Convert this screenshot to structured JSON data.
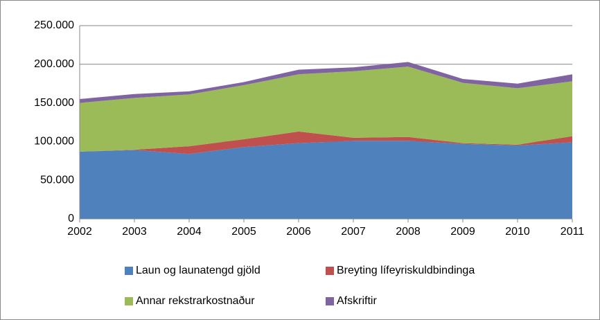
{
  "chart_data": {
    "type": "stacked-area",
    "x": [
      2002,
      2003,
      2004,
      2005,
      2006,
      2007,
      2008,
      2009,
      2010,
      2011
    ],
    "xlim": [
      2002,
      2011
    ],
    "series": [
      {
        "name": "Laun og launatengd gjöld",
        "color": "#4f81bd",
        "values": [
          87000,
          89000,
          84000,
          93000,
          98000,
          101000,
          101000,
          97000,
          95000,
          99000
        ]
      },
      {
        "name": "Breyting lífeyriskuldbindinga",
        "color": "#c0504d",
        "values": [
          0,
          500,
          10000,
          10000,
          15000,
          4000,
          5000,
          1000,
          1000,
          8000
        ]
      },
      {
        "name": "Annar rekstrarkostnaður",
        "color": "#9bbb59",
        "values": [
          63000,
          67000,
          67000,
          70000,
          74000,
          86000,
          91000,
          78000,
          73000,
          71000
        ]
      },
      {
        "name": "Afskriftir",
        "color": "#8064a2",
        "values": [
          5000,
          5000,
          4000,
          4000,
          6000,
          5000,
          6000,
          5000,
          6000,
          9000
        ]
      }
    ],
    "ylim": [
      0,
      250000
    ],
    "yticks": [
      0,
      {
        "value": 50000,
        "label": "50.000"
      },
      {
        "value": 100000,
        "label": "100.000"
      },
      {
        "value": 150000,
        "label": "150.000"
      },
      {
        "value": 200000,
        "label": "200.000"
      },
      {
        "value": 250000,
        "label": "250.000"
      }
    ],
    "grid": true,
    "legend": "bottom"
  }
}
